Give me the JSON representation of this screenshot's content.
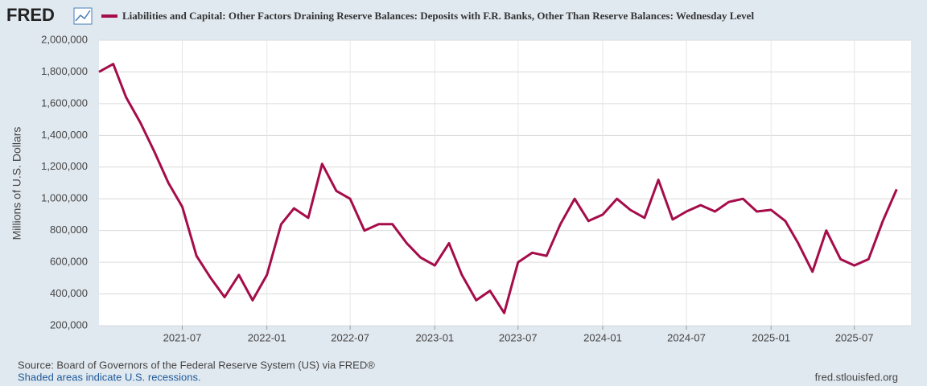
{
  "brand": "FRED",
  "chart_data": {
    "type": "line",
    "title": "Liabilities and Capital: Other Factors Draining Reserve Balances: Deposits with F.R. Banks, Other Than Reserve Balances: Wednesday Level",
    "y_label": "Millions of U.S. Dollars",
    "x": [
      "2021-01",
      "2021-02",
      "2021-03",
      "2021-04",
      "2021-05",
      "2021-06",
      "2021-07",
      "2021-08",
      "2021-09",
      "2021-10",
      "2021-11",
      "2021-12",
      "2022-01",
      "2022-02",
      "2022-03",
      "2022-04",
      "2022-05",
      "2022-06",
      "2022-07",
      "2022-08",
      "2022-09",
      "2022-10",
      "2022-11",
      "2022-12",
      "2023-01",
      "2023-02",
      "2023-03",
      "2023-04",
      "2023-05",
      "2023-06",
      "2023-07",
      "2023-08",
      "2023-09",
      "2023-10",
      "2023-11",
      "2023-12",
      "2024-01",
      "2024-02",
      "2024-03",
      "2024-04",
      "2024-05",
      "2024-06",
      "2024-07",
      "2024-08",
      "2024-09",
      "2024-10",
      "2024-11",
      "2024-12",
      "2025-01",
      "2025-02",
      "2025-03",
      "2025-04",
      "2025-05",
      "2025-06",
      "2025-07",
      "2025-08",
      "2025-09",
      "2025-10"
    ],
    "series": [
      {
        "name": "Liabilities and Capital: Other Factors Draining Reserve Balances: Deposits with F.R. Banks, Other Than Reserve Balances: Wednesday Level",
        "color": "#a50c4a",
        "values": [
          1800000,
          1850000,
          1640000,
          1480000,
          1300000,
          1100000,
          950000,
          640000,
          500000,
          380000,
          520000,
          360000,
          520000,
          840000,
          940000,
          880000,
          1220000,
          1050000,
          1000000,
          800000,
          840000,
          840000,
          720000,
          630000,
          580000,
          720000,
          520000,
          360000,
          420000,
          280000,
          600000,
          660000,
          640000,
          840000,
          1000000,
          860000,
          900000,
          1000000,
          930000,
          880000,
          1120000,
          870000,
          920000,
          960000,
          920000,
          980000,
          1000000,
          920000,
          930000,
          860000,
          720000,
          540000,
          800000,
          620000,
          580000,
          620000,
          860000,
          1060000
        ]
      }
    ],
    "xlim": [
      "2021-01",
      "2025-11"
    ],
    "xticks": [
      "2021-07",
      "2022-01",
      "2022-07",
      "2023-01",
      "2023-07",
      "2024-01",
      "2024-07",
      "2025-01",
      "2025-07"
    ],
    "ylim": [
      200000,
      2000000
    ],
    "yticks": [
      {
        "value": 200000,
        "label": "200,000"
      },
      {
        "value": 400000,
        "label": "400,000"
      },
      {
        "value": 600000,
        "label": "600,000"
      },
      {
        "value": 800000,
        "label": "800,000"
      },
      {
        "value": 1000000,
        "label": "1,000,000"
      },
      {
        "value": 1200000,
        "label": "1,200,000"
      },
      {
        "value": 1400000,
        "label": "1,400,000"
      },
      {
        "value": 1600000,
        "label": "1,600,000"
      },
      {
        "value": 1800000,
        "label": "1,800,000"
      },
      {
        "value": 2000000,
        "label": "2,000,000"
      }
    ],
    "grid": true
  },
  "footer": {
    "source": "Source: Board of Governors of the Federal Reserve System (US) via FRED®",
    "note": "Shaded areas indicate U.S. recessions.",
    "site": "fred.stlouisfed.org"
  }
}
